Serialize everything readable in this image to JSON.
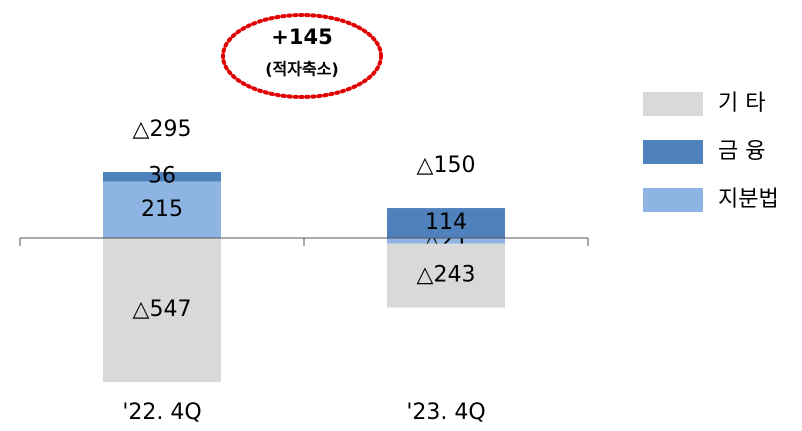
{
  "chart_data": {
    "type": "bar",
    "stacked": true,
    "categories": [
      "'22. 4Q",
      "'23. 4Q"
    ],
    "series": [
      {
        "name": "기 타",
        "color": "#d9d9d9",
        "values": [
          -547,
          -243
        ],
        "value_labels": [
          "△547",
          "△243"
        ]
      },
      {
        "name": "금 융",
        "color": "#4f81bd",
        "values": [
          36,
          114
        ]
      },
      {
        "name": "지분법",
        "color": "#8db4e2",
        "values": [
          215,
          -21
        ],
        "value_labels": [
          "215",
          "△21"
        ]
      }
    ],
    "totals": {
      "values": [
        -295,
        -150
      ],
      "value_labels": [
        "△295",
        "△150"
      ]
    },
    "annotation": {
      "value": 145,
      "label": "+145",
      "note": "(적자축소)"
    },
    "legend": "right"
  }
}
